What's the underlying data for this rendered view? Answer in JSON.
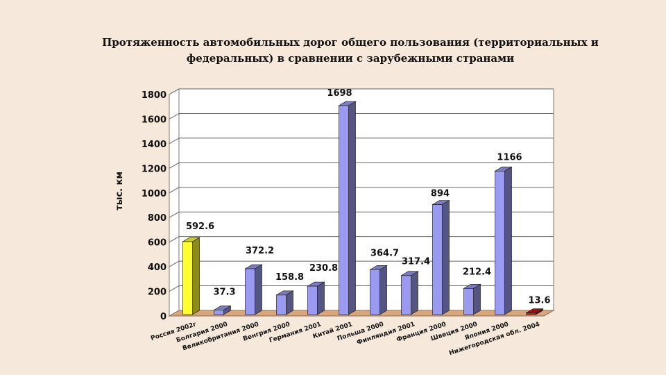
{
  "chart_data": {
    "type": "bar",
    "title": "Протяженность автомобильных дорог общего пользования (территориальных и федеральных) в сравнении с зарубежными странами",
    "ylabel": "тыс. км",
    "ylim": [
      0,
      1800
    ],
    "yticks": [
      0,
      200,
      400,
      600,
      800,
      1000,
      1200,
      1400,
      1600,
      1800
    ],
    "grid": true,
    "categories": [
      "Россия 2002г",
      "Болгария 2000",
      "Великобритания 2000",
      "Венгрия 2000",
      "Германия 2001",
      "Китай 2001",
      "Польша 2000",
      "Финляндия 2001",
      "Франция 2000",
      "Швеция 2000",
      "Япония 2000",
      "Нижегородская обл. 2004"
    ],
    "values": [
      592.6,
      37.3,
      372.2,
      158.8,
      230.8,
      1698,
      364.7,
      317.4,
      894,
      212.4,
      1166,
      13.6
    ],
    "value_labels": [
      "592.6",
      "37.3",
      "372.2",
      "158.8",
      "230.8",
      "1698",
      "364.7",
      "317.4",
      "894",
      "212.4",
      "1166",
      "13.6"
    ],
    "colors": {
      "default_bar": "#9a9af0",
      "highlight_first": "#ffff33",
      "highlight_last": "#cc1010",
      "floor": "#d9a57a",
      "background": "#f7e8dc"
    }
  }
}
